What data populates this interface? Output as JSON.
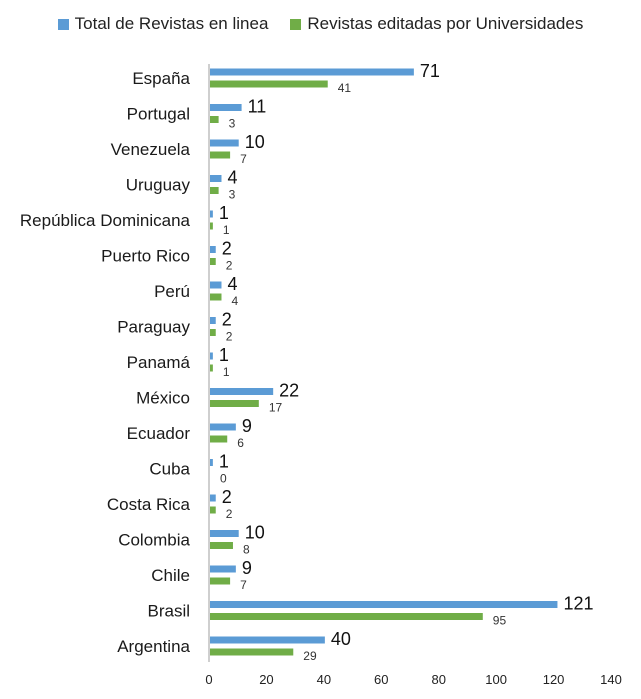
{
  "chart_data": {
    "type": "bar",
    "orientation": "horizontal",
    "categories": [
      "España",
      "Portugal",
      "Venezuela",
      "Uruguay",
      "República Dominicana",
      "Puerto Rico",
      "Perú",
      "Paraguay",
      "Panamá",
      "México",
      "Ecuador",
      "Cuba",
      "Costa Rica",
      "Colombia",
      "Chile",
      "Brasil",
      "Argentina"
    ],
    "series": [
      {
        "name": "Total de Revistas en linea",
        "values": [
          71,
          11,
          10,
          4,
          1,
          2,
          4,
          2,
          1,
          22,
          9,
          1,
          2,
          10,
          9,
          121,
          40
        ],
        "color": "#5b9bd5"
      },
      {
        "name": "Revistas editadas por Universidades",
        "values": [
          41,
          3,
          7,
          3,
          1,
          2,
          4,
          2,
          1,
          17,
          6,
          0,
          2,
          8,
          7,
          95,
          29
        ],
        "color": "#70ad47"
      }
    ],
    "xlim": [
      0,
      140
    ],
    "xticks": [
      0,
      20,
      40,
      60,
      80,
      100,
      120,
      140
    ],
    "legend_position": "top",
    "grid": false
  }
}
